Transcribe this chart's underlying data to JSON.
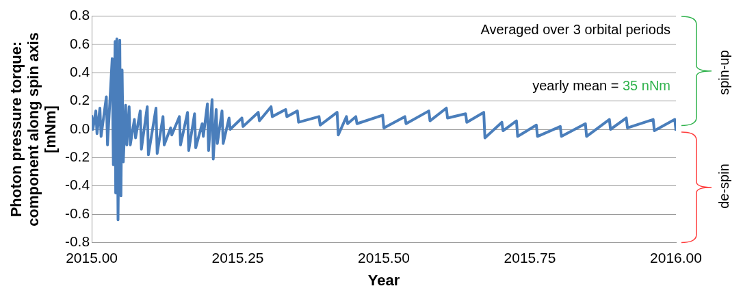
{
  "chart_data": {
    "type": "line",
    "xlabel": "Year",
    "ylabel": "Photon pressure torque:\ncomponent along spin axis\n[mNm]",
    "xlim": [
      2015,
      2016
    ],
    "xticks": [
      {
        "value": 2015,
        "label": "2015.00"
      },
      2015.25,
      {
        "value": 2015.5,
        "label": "2015.50"
      },
      2015.75,
      {
        "value": 2016,
        "label": "2016.00"
      }
    ],
    "ylim": [
      -0.8,
      0.8
    ],
    "yticks": [
      -0.8,
      -0.6,
      -0.4,
      -0.2,
      {
        "value": 0,
        "label": "0.0"
      },
      0.2,
      0.4,
      0.6,
      0.8
    ],
    "grid": "y",
    "legend": false,
    "marker": "none",
    "line_style": "solid",
    "annotations": [
      "Averaged over 3 orbital periods",
      "yearly mean = 35 nNm",
      "spin-up",
      "de-spin"
    ],
    "series": [
      {
        "color": "#4a7ebb",
        "x": [
          2015.0,
          2015.002,
          2015.007,
          2015.009,
          2015.014,
          2015.016,
          2015.025,
          2015.027,
          2015.035,
          2015.037,
          2015.04,
          2015.041,
          2015.043,
          2015.045,
          2015.048,
          2015.05,
          2015.052,
          2015.054,
          2015.058,
          2015.06,
          2015.064,
          2015.066,
          2015.073,
          2015.075,
          2015.083,
          2015.085,
          2015.095,
          2015.097,
          2015.11,
          2015.112,
          2015.122,
          2015.124,
          2015.135,
          2015.137,
          2015.15,
          2015.152,
          2015.164,
          2015.166,
          2015.176,
          2015.178,
          2015.189,
          2015.191,
          2015.198,
          2015.2,
          2015.206,
          2015.208,
          2015.213,
          2015.215,
          2015.223,
          2015.225,
          2015.235,
          2015.237,
          2015.257,
          2015.259,
          2015.285,
          2015.287,
          2015.307,
          2015.309,
          2015.332,
          2015.334,
          2015.352,
          2015.354,
          2015.389,
          2015.391,
          2015.42,
          2015.422,
          2015.436,
          2015.438,
          2015.452,
          2015.454,
          2015.498,
          2015.5,
          2015.536,
          2015.538,
          2015.577,
          2015.579,
          2015.607,
          2015.609,
          2015.64,
          2015.642,
          2015.671,
          2015.673,
          2015.702,
          2015.704,
          2015.727,
          2015.729,
          2015.761,
          2015.763,
          2015.802,
          2015.804,
          2015.845,
          2015.847,
          2015.886,
          2015.888,
          2015.915,
          2015.917,
          2015.961,
          2015.963,
          2015.998,
          2016.0
        ],
        "values": [
          0.1,
          0.0,
          0.13,
          -0.03,
          0.15,
          -0.05,
          0.23,
          -0.11,
          0.5,
          -0.25,
          0.62,
          -0.45,
          0.64,
          -0.64,
          0.63,
          -0.47,
          0.42,
          -0.23,
          0.17,
          -0.11,
          0.16,
          -0.11,
          0.07,
          -0.06,
          0.13,
          -0.14,
          0.16,
          -0.18,
          0.15,
          -0.17,
          0.09,
          -0.11,
          0.01,
          -0.04,
          0.09,
          -0.11,
          0.12,
          -0.15,
          0.11,
          -0.13,
          0.04,
          -0.05,
          0.18,
          -0.15,
          0.21,
          -0.21,
          0.14,
          -0.1,
          0.13,
          -0.1,
          0.08,
          0.0,
          0.08,
          0.02,
          0.12,
          0.06,
          0.16,
          0.09,
          0.14,
          0.09,
          0.13,
          0.05,
          0.09,
          0.03,
          0.12,
          -0.04,
          0.09,
          0.04,
          0.09,
          0.04,
          0.1,
          0.01,
          0.09,
          0.04,
          0.13,
          0.06,
          0.15,
          0.08,
          0.11,
          0.05,
          0.12,
          -0.06,
          0.05,
          -0.01,
          0.06,
          -0.05,
          0.03,
          -0.05,
          0.02,
          -0.05,
          0.04,
          -0.05,
          0.07,
          0.0,
          0.08,
          0.01,
          0.07,
          -0.01,
          0.07,
          -0.01
        ]
      }
    ]
  }
}
